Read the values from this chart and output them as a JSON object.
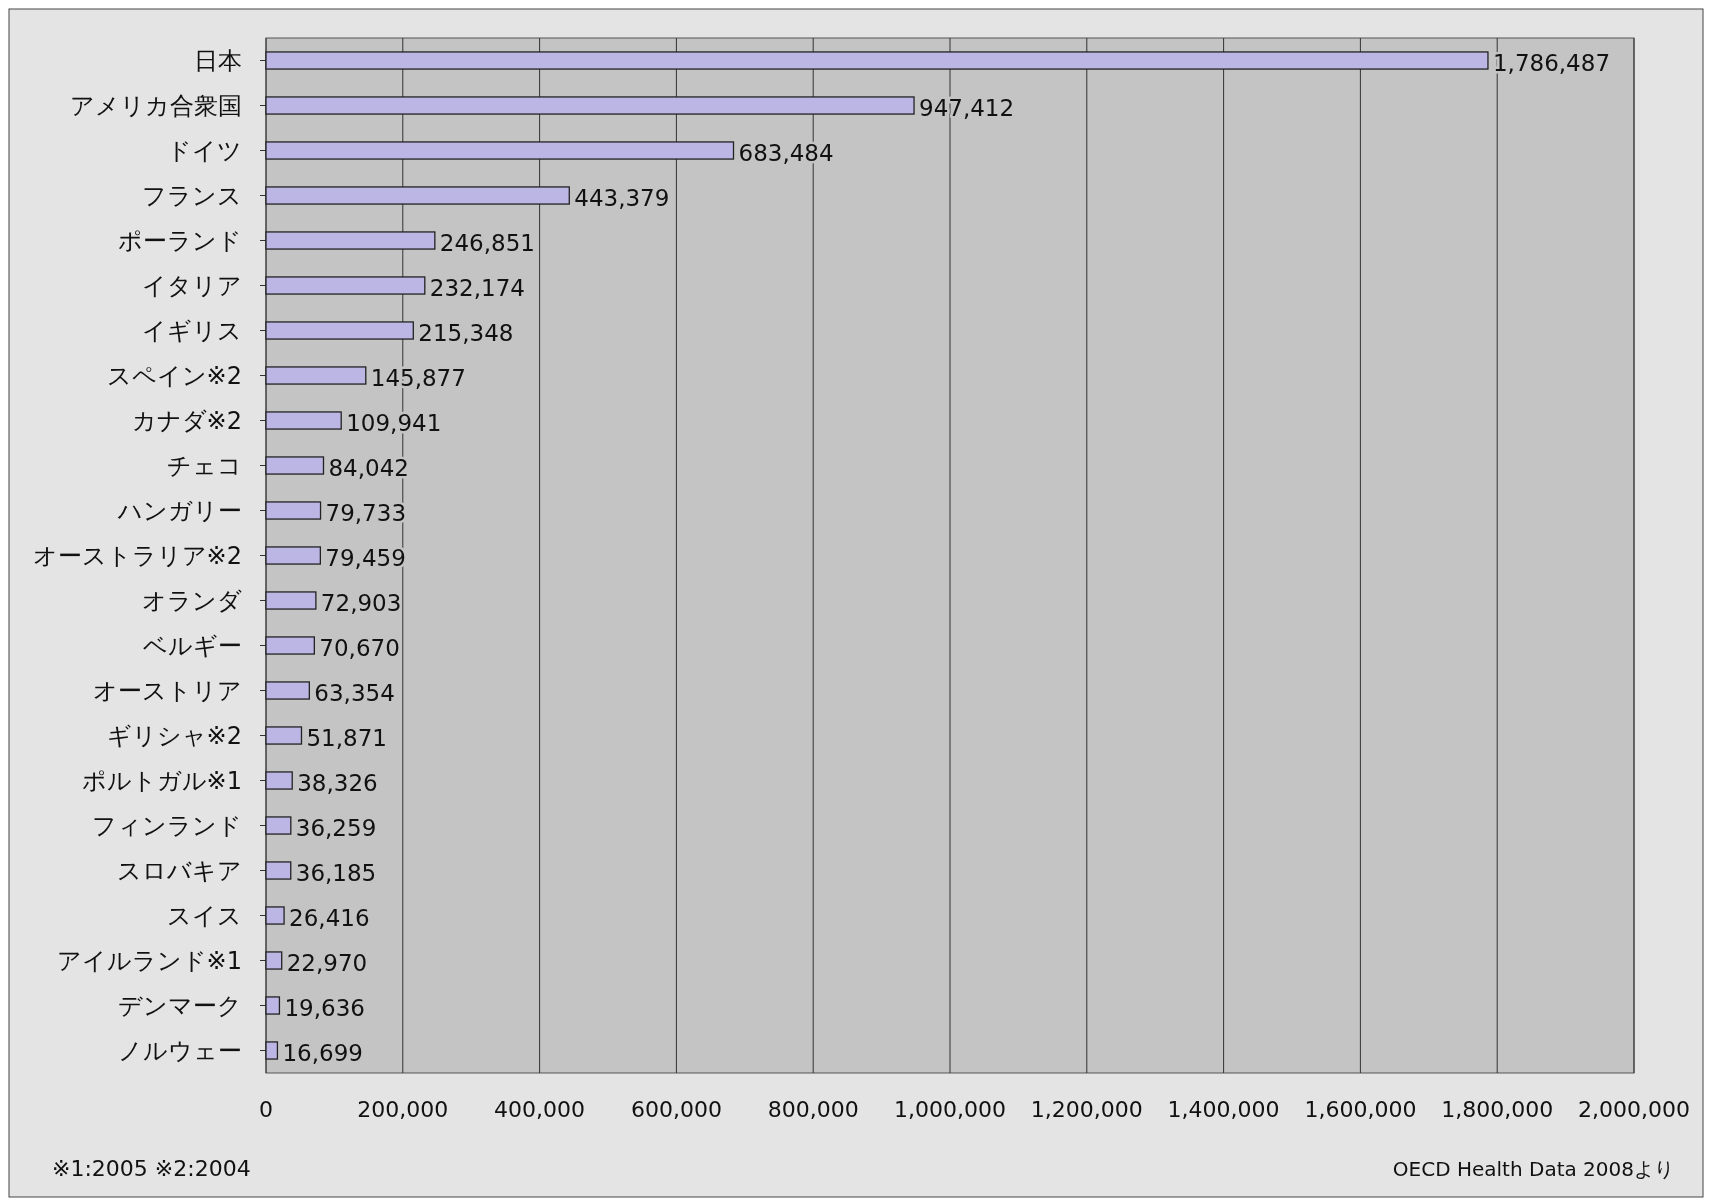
{
  "chart_data": {
    "type": "bar",
    "orientation": "horizontal",
    "categories": [
      "日本",
      "アメリカ合衆国",
      "ドイツ",
      "フランス",
      "ポーランド",
      "イタリア",
      "イギリス",
      "スペイン※2",
      "カナダ※2",
      "チェコ",
      "ハンガリー",
      "オーストラリア※2",
      "オランダ",
      "ベルギー",
      "オーストリア",
      "ギリシャ※2",
      "ポルトガル※1",
      "フィンランド",
      "スロバキア",
      "スイス",
      "アイルランド※1",
      "デンマーク",
      "ノルウェー"
    ],
    "values": [
      1786487,
      947412,
      683484,
      443379,
      246851,
      232174,
      215348,
      145877,
      109941,
      84042,
      79733,
      79459,
      72903,
      70670,
      63354,
      51871,
      38326,
      36259,
      36185,
      26416,
      22970,
      19636,
      16699
    ],
    "color": "#bcb6e4",
    "xlim": [
      0,
      2000000
    ],
    "xticks": [
      {
        "value": 0,
        "label": "0"
      },
      {
        "value": 200000,
        "label": "200,000"
      },
      {
        "value": 400000,
        "label": "400,000"
      },
      {
        "value": 600000,
        "label": "600,000"
      },
      {
        "value": 800000,
        "label": "800,000"
      },
      {
        "value": 1000000,
        "label": "1,000,000"
      },
      {
        "value": 1200000,
        "label": "1,200,000"
      },
      {
        "value": 1400000,
        "label": "1,400,000"
      },
      {
        "value": 1600000,
        "label": "1,600,000"
      },
      {
        "value": 1800000,
        "label": "1,800,000"
      },
      {
        "value": 2000000,
        "label": "2,000,000"
      }
    ],
    "value_labels": [
      "1,786,487",
      "947,412",
      "683,484",
      "443,379",
      "246,851",
      "232,174",
      "215,348",
      "145,877",
      "109,941",
      "84,042",
      "79,733",
      "79,459",
      "72,903",
      "70,670",
      "63,354",
      "51,871",
      "38,326",
      "36,259",
      "36,185",
      "26,416",
      "22,970",
      "19,636",
      "16,699"
    ],
    "grid": "x",
    "annotations": [
      "※1:2005 ※2:2004",
      "OECD Health Data 2008より"
    ]
  }
}
